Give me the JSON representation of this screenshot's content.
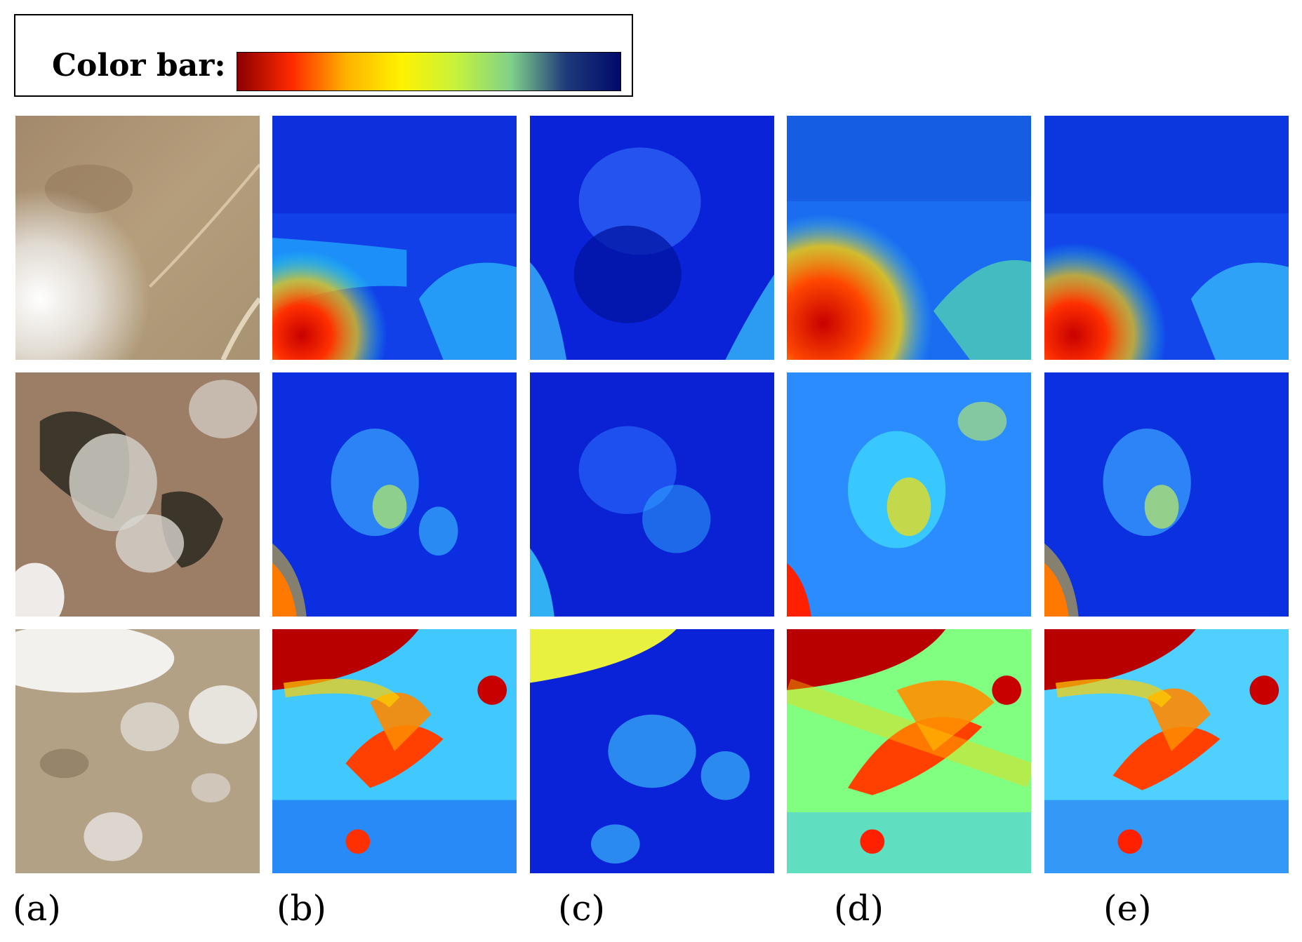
{
  "legend": {
    "label": "Color bar:",
    "gradient_colors": [
      "#8b0000",
      "#ff2a00",
      "#ffb300",
      "#fff200",
      "#c6f23c",
      "#7fd18a",
      "#1f3a7a",
      "#000a6b"
    ]
  },
  "panels": [
    {
      "label": "(a)",
      "content": "satellite-rgb"
    },
    {
      "label": "(b)",
      "content": "heatmap"
    },
    {
      "label": "(c)",
      "content": "heatmap"
    },
    {
      "label": "(d)",
      "content": "heatmap"
    },
    {
      "label": "(e)",
      "content": "heatmap"
    }
  ],
  "rows": 3,
  "heatmap_colormap": [
    "#00008f",
    "#0000ff",
    "#0080ff",
    "#00ffff",
    "#80ff80",
    "#ffff00",
    "#ff8000",
    "#ff0000",
    "#800000"
  ]
}
